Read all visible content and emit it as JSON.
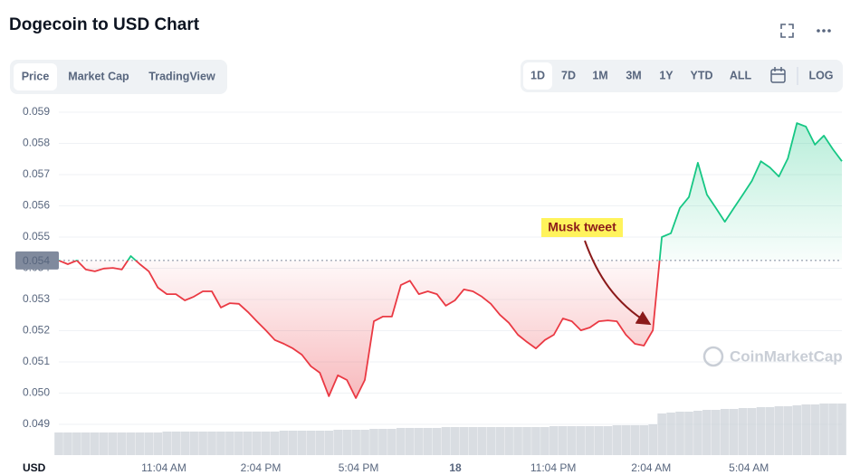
{
  "header": {
    "title": "Dogecoin to USD Chart"
  },
  "tabs": [
    "Price",
    "Market Cap",
    "TradingView"
  ],
  "ranges": [
    "1D",
    "7D",
    "1M",
    "3M",
    "1Y",
    "YTD",
    "ALL"
  ],
  "log_button": "LOG",
  "watermark": "CoinMarketCap",
  "chart_data": {
    "type": "line",
    "currency_label": "USD",
    "annotation": {
      "text": "Musk tweet"
    },
    "up_color": "#16c784",
    "down_color": "#ea3943",
    "volume_color": "#c9ced6",
    "grid": true,
    "xlim": [
      0,
      87
    ],
    "xticks": [
      {
        "value": 11.67,
        "label": "11:04 AM"
      },
      {
        "value": 22.43,
        "label": "2:04 PM"
      },
      {
        "value": 33.3,
        "label": "5:04 PM"
      },
      {
        "value": 44.06,
        "label": "18"
      },
      {
        "value": 54.93,
        "label": "11:04 PM"
      },
      {
        "value": 65.8,
        "label": "2:04 AM"
      },
      {
        "value": 76.66,
        "label": "5:04 AM"
      }
    ],
    "ylim": [
      0.0481,
      0.0594
    ],
    "yticks": [
      0.049,
      {
        "value": 0.05,
        "label": "0.050"
      },
      0.051,
      0.052,
      0.053,
      0.054,
      0.055,
      0.056,
      0.057,
      0.058,
      0.059
    ],
    "baseline": {
      "value": 0.05425,
      "label": "0.054"
    },
    "values": [
      0.05425,
      0.05413,
      0.05425,
      0.05396,
      0.0539,
      0.05399,
      0.05401,
      0.05396,
      0.05439,
      0.05413,
      0.0539,
      0.05338,
      0.05317,
      0.05317,
      0.05297,
      0.05309,
      0.05326,
      0.05326,
      0.05274,
      0.05288,
      0.05286,
      0.0526,
      0.0523,
      0.05201,
      0.0517,
      0.05158,
      0.05143,
      0.05123,
      0.05086,
      0.05065,
      0.0499,
      0.05057,
      0.05042,
      0.04984,
      0.05042,
      0.0523,
      0.05245,
      0.05245,
      0.05346,
      0.0536,
      0.05317,
      0.05326,
      0.05317,
      0.0528,
      0.05297,
      0.05332,
      0.05326,
      0.05309,
      0.05286,
      0.05251,
      0.05225,
      0.05187,
      0.05164,
      0.05143,
      0.0517,
      0.05187,
      0.05239,
      0.0523,
      0.05201,
      0.0521,
      0.0523,
      0.05233,
      0.0523,
      0.05187,
      0.05158,
      0.05152,
      0.05201,
      0.055,
      0.05512,
      0.05593,
      0.05628,
      0.05738,
      0.05636,
      0.05593,
      0.05549,
      0.05593,
      0.05636,
      0.0568,
      0.05743,
      0.05723,
      0.05694,
      0.05752,
      0.05865,
      0.05854,
      0.05796,
      0.05825,
      0.05781,
      0.05743
    ],
    "volume": [
      25,
      25,
      25,
      25,
      25,
      25,
      25,
      25,
      25,
      25,
      25,
      25,
      26,
      26,
      26,
      26,
      26,
      26,
      26,
      26,
      26,
      26,
      26,
      26,
      26,
      27,
      27,
      27,
      27,
      27,
      27,
      28,
      28,
      28,
      28,
      29,
      29,
      29,
      30,
      30,
      30,
      30,
      30,
      31,
      31,
      31,
      31,
      31,
      31,
      31,
      31,
      31,
      31,
      31,
      31,
      32,
      32,
      32,
      32,
      32,
      32,
      32,
      33,
      33,
      33,
      33,
      34,
      46,
      47,
      48,
      48,
      49,
      50,
      50,
      51,
      51,
      52,
      52,
      53,
      53,
      54,
      54,
      55,
      56,
      56,
      57,
      57,
      57
    ]
  }
}
